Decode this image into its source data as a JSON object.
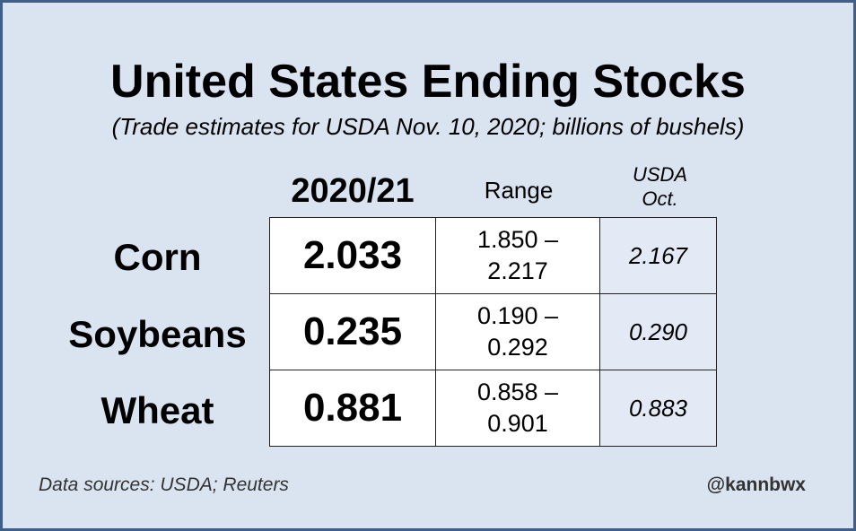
{
  "chart_data": {
    "type": "table",
    "title": "United States Ending Stocks",
    "subtitle": "(Trade estimates for USDA Nov. 10, 2020; billions of bushels)",
    "columns": [
      "2020/21",
      "Range",
      "USDA Oct."
    ],
    "column_labels": {
      "main": "2020/21",
      "range": "Range",
      "usda_line1": "USDA",
      "usda_line2": "Oct."
    },
    "rows": [
      {
        "label": "Corn",
        "estimate": "2.033",
        "range_low": "1.850 –",
        "range_high": "2.217",
        "usda_oct": "2.167"
      },
      {
        "label": "Soybeans",
        "estimate": "0.235",
        "range_low": "0.190 –",
        "range_high": "0.292",
        "usda_oct": "0.290"
      },
      {
        "label": "Wheat",
        "estimate": "0.881",
        "range_low": "0.858 –",
        "range_high": "0.901",
        "usda_oct": "0.883"
      }
    ],
    "source": "Data sources: USDA; Reuters",
    "handle": "@kannbwx"
  },
  "colors": {
    "background": "#dae3f0",
    "border": "#3e5f8a",
    "usda_cell": "#e3e9f5"
  }
}
